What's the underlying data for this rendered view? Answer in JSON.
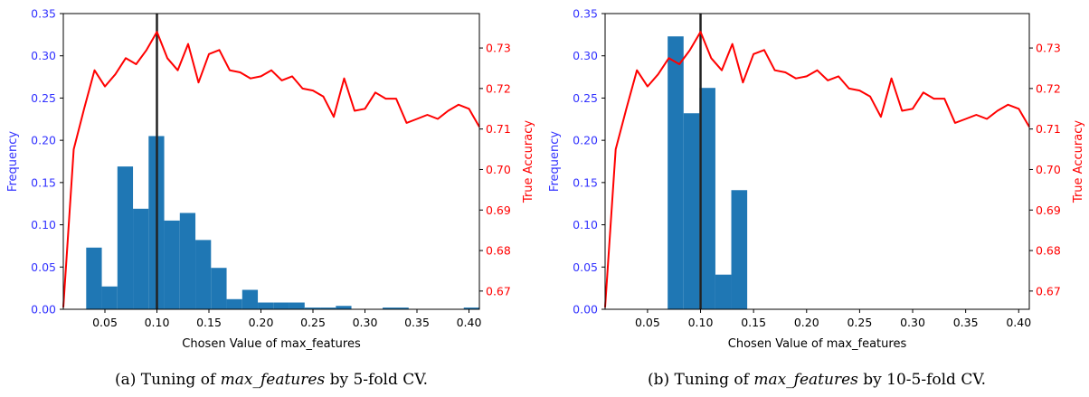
{
  "colors": {
    "bar": "#1f77b4",
    "line": "#ff0000",
    "vline": "#222222",
    "left_axis": "#3333ff",
    "right_axis": "#ff0000"
  },
  "chart_data": [
    {
      "type": "bar",
      "caption_prefix": "(a)  Tuning of ",
      "caption_math": "max_features",
      "caption_suffix": " by 5-fold CV.",
      "xlabel": "Chosen Value of max_features",
      "ylabel_left": "Frequency",
      "ylabel_right": "True Accuracy",
      "xlim": [
        0.01,
        0.41
      ],
      "ylim_left": [
        0,
        0.35
      ],
      "ylim_right": [
        0.6655,
        0.7385
      ],
      "xticks": [
        0.05,
        0.1,
        0.15,
        0.2,
        0.25,
        0.3,
        0.35,
        0.4
      ],
      "xtick_labels": [
        "0.05",
        "0.10",
        "0.15",
        "0.20",
        "0.25",
        "0.30",
        "0.35",
        "0.40"
      ],
      "yticks_left": [
        0,
        0.05,
        0.1,
        0.15,
        0.2,
        0.25,
        0.3,
        0.35
      ],
      "ytick_labels_left": [
        "0.00",
        "0.05",
        "0.10",
        "0.15",
        "0.20",
        "0.25",
        "0.30",
        "0.35"
      ],
      "yticks_right": [
        0.67,
        0.68,
        0.69,
        0.7,
        0.71,
        0.72,
        0.73
      ],
      "ytick_labels_right": [
        "0.67",
        "0.68",
        "0.69",
        "0.70",
        "0.71",
        "0.72",
        "0.73"
      ],
      "vline_x": 0.1,
      "bars": [
        {
          "x0": 0.032,
          "x1": 0.047,
          "y": 0.073
        },
        {
          "x0": 0.047,
          "x1": 0.062,
          "y": 0.027
        },
        {
          "x0": 0.062,
          "x1": 0.077,
          "y": 0.169
        },
        {
          "x0": 0.077,
          "x1": 0.092,
          "y": 0.119
        },
        {
          "x0": 0.092,
          "x1": 0.107,
          "y": 0.205
        },
        {
          "x0": 0.107,
          "x1": 0.122,
          "y": 0.105
        },
        {
          "x0": 0.122,
          "x1": 0.137,
          "y": 0.114
        },
        {
          "x0": 0.137,
          "x1": 0.152,
          "y": 0.082
        },
        {
          "x0": 0.152,
          "x1": 0.167,
          "y": 0.049
        },
        {
          "x0": 0.167,
          "x1": 0.182,
          "y": 0.012
        },
        {
          "x0": 0.182,
          "x1": 0.197,
          "y": 0.023
        },
        {
          "x0": 0.197,
          "x1": 0.212,
          "y": 0.008
        },
        {
          "x0": 0.212,
          "x1": 0.227,
          "y": 0.008
        },
        {
          "x0": 0.227,
          "x1": 0.242,
          "y": 0.008
        },
        {
          "x0": 0.242,
          "x1": 0.257,
          "y": 0.002
        },
        {
          "x0": 0.257,
          "x1": 0.272,
          "y": 0.002
        },
        {
          "x0": 0.272,
          "x1": 0.287,
          "y": 0.004
        },
        {
          "x0": 0.317,
          "x1": 0.342,
          "y": 0.002
        },
        {
          "x0": 0.395,
          "x1": 0.41,
          "y": 0.002
        }
      ],
      "line": {
        "x": [
          0.01,
          0.02,
          0.03,
          0.04,
          0.05,
          0.06,
          0.07,
          0.08,
          0.09,
          0.1,
          0.11,
          0.12,
          0.13,
          0.14,
          0.15,
          0.16,
          0.17,
          0.18,
          0.19,
          0.2,
          0.21,
          0.22,
          0.23,
          0.24,
          0.25,
          0.26,
          0.27,
          0.28,
          0.29,
          0.3,
          0.31,
          0.32,
          0.33,
          0.34,
          0.35,
          0.36,
          0.37,
          0.38,
          0.39,
          0.4,
          0.41
        ],
        "y": [
          0.666,
          0.705,
          0.715,
          0.7245,
          0.7205,
          0.7235,
          0.7275,
          0.726,
          0.7295,
          0.734,
          0.7275,
          0.7245,
          0.731,
          0.7215,
          0.7285,
          0.7295,
          0.7245,
          0.724,
          0.7225,
          0.723,
          0.7245,
          0.722,
          0.723,
          0.72,
          0.7195,
          0.718,
          0.713,
          0.7225,
          0.7145,
          0.715,
          0.719,
          0.7175,
          0.7175,
          0.7115,
          0.7125,
          0.7135,
          0.7125,
          0.7145,
          0.716,
          0.715,
          0.7105
        ]
      }
    },
    {
      "type": "bar",
      "caption_prefix": "(b)  Tuning of ",
      "caption_math": "max_features",
      "caption_suffix": " by 10-5-fold CV.",
      "xlabel": "Chosen Value of max_features",
      "ylabel_left": "Frequency",
      "ylabel_right": "True Accuracy",
      "xlim": [
        0.01,
        0.41
      ],
      "ylim_left": [
        0,
        0.35
      ],
      "ylim_right": [
        0.6655,
        0.7385
      ],
      "xticks": [
        0.05,
        0.1,
        0.15,
        0.2,
        0.25,
        0.3,
        0.35,
        0.4
      ],
      "xtick_labels": [
        "0.05",
        "0.10",
        "0.15",
        "0.20",
        "0.25",
        "0.30",
        "0.35",
        "0.40"
      ],
      "yticks_left": [
        0,
        0.05,
        0.1,
        0.15,
        0.2,
        0.25,
        0.3,
        0.35
      ],
      "ytick_labels_left": [
        "0.00",
        "0.05",
        "0.10",
        "0.15",
        "0.20",
        "0.25",
        "0.30",
        "0.35"
      ],
      "yticks_right": [
        0.67,
        0.68,
        0.69,
        0.7,
        0.71,
        0.72,
        0.73
      ],
      "ytick_labels_right": [
        "0.67",
        "0.68",
        "0.69",
        "0.70",
        "0.71",
        "0.72",
        "0.73"
      ],
      "vline_x": 0.1,
      "bars": [
        {
          "x0": 0.069,
          "x1": 0.084,
          "y": 0.323
        },
        {
          "x0": 0.084,
          "x1": 0.099,
          "y": 0.232
        },
        {
          "x0": 0.099,
          "x1": 0.114,
          "y": 0.262
        },
        {
          "x0": 0.114,
          "x1": 0.129,
          "y": 0.041
        },
        {
          "x0": 0.129,
          "x1": 0.144,
          "y": 0.141
        }
      ],
      "line": {
        "x": [
          0.01,
          0.02,
          0.03,
          0.04,
          0.05,
          0.06,
          0.07,
          0.08,
          0.09,
          0.1,
          0.11,
          0.12,
          0.13,
          0.14,
          0.15,
          0.16,
          0.17,
          0.18,
          0.19,
          0.2,
          0.21,
          0.22,
          0.23,
          0.24,
          0.25,
          0.26,
          0.27,
          0.28,
          0.29,
          0.3,
          0.31,
          0.32,
          0.33,
          0.34,
          0.35,
          0.36,
          0.37,
          0.38,
          0.39,
          0.4,
          0.41
        ],
        "y": [
          0.666,
          0.705,
          0.715,
          0.7245,
          0.7205,
          0.7235,
          0.7275,
          0.726,
          0.7295,
          0.734,
          0.7275,
          0.7245,
          0.731,
          0.7215,
          0.7285,
          0.7295,
          0.7245,
          0.724,
          0.7225,
          0.723,
          0.7245,
          0.722,
          0.723,
          0.72,
          0.7195,
          0.718,
          0.713,
          0.7225,
          0.7145,
          0.715,
          0.719,
          0.7175,
          0.7175,
          0.7115,
          0.7125,
          0.7135,
          0.7125,
          0.7145,
          0.716,
          0.715,
          0.7105
        ]
      }
    }
  ]
}
